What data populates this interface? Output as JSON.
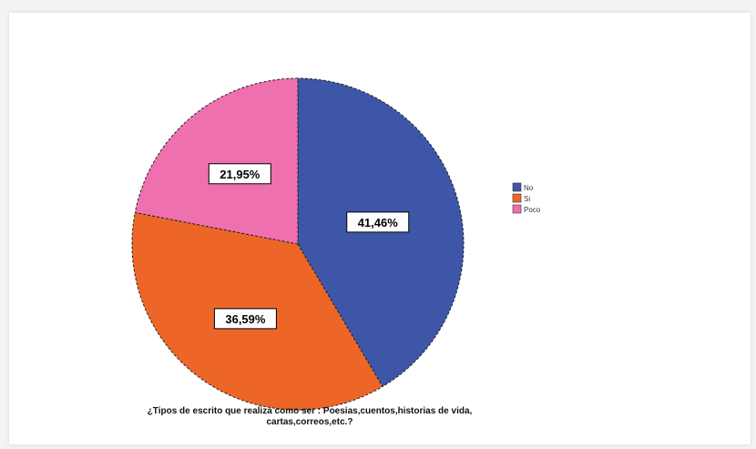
{
  "chart_data": {
    "type": "pie",
    "slices": [
      {
        "label": "No",
        "value": 41.46,
        "display": "41,46%",
        "color": "#3e56a8"
      },
      {
        "label": "Si",
        "value": 36.59,
        "display": "36,59%",
        "color": "#ed6628"
      },
      {
        "label": "Poco",
        "value": 21.95,
        "display": "21,95%",
        "color": "#ee70ae"
      }
    ],
    "legend_position": "right",
    "caption": "¿Tipos de escrito que realiza como ser : Poesias,cuentos,historias de vida, cartas,correos,etc.?",
    "caption_line1": "¿Tipos de escrito que realiza como ser : Poesias,cuentos,historias de vida,",
    "caption_line2": "cartas,correos,etc.?"
  }
}
